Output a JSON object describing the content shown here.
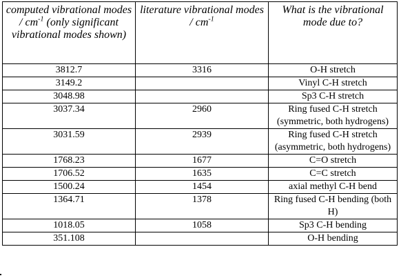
{
  "table": {
    "headers": [
      {
        "text": "computed vibrational modes / cm",
        "sup": "-1",
        "tail": " (only significant vibrational modes shown)"
      },
      {
        "text": "literature vibrational modes / cm",
        "sup": "-1",
        "tail": ""
      },
      {
        "text": "What is the vibrational mode due to?",
        "sup": "",
        "tail": ""
      }
    ],
    "rows": [
      {
        "computed": "3812.7",
        "literature": "3316",
        "mode": "O-H stretch"
      },
      {
        "computed": "3149.2",
        "literature": "",
        "mode": "Vinyl C-H stretch"
      },
      {
        "computed": "3048.98",
        "literature": "",
        "mode": "Sp3 C-H stretch"
      },
      {
        "computed": "3037.34",
        "literature": "2960",
        "mode": "Ring fused C-H stretch (symmetric, both hydrogens)"
      },
      {
        "computed": "3031.59",
        "literature": "2939",
        "mode": "Ring fused C-H stretch (asymmetric, both hydrogens)"
      },
      {
        "computed": "1768.23",
        "literature": "1677",
        "mode": "C=O stretch"
      },
      {
        "computed": "1706.52",
        "literature": "1635",
        "mode": "C=C stretch"
      },
      {
        "computed": "1500.24",
        "literature": "1454",
        "mode": "axial methyl C-H bend"
      },
      {
        "computed": "1364.71",
        "literature": "1378",
        "mode": "Ring fused C-H bending (both H)"
      },
      {
        "computed": "1018.05",
        "literature": "1058",
        "mode": "Sp3 C-H bending"
      },
      {
        "computed": "351.108",
        "literature": "",
        "mode": "O-H bending"
      }
    ]
  }
}
